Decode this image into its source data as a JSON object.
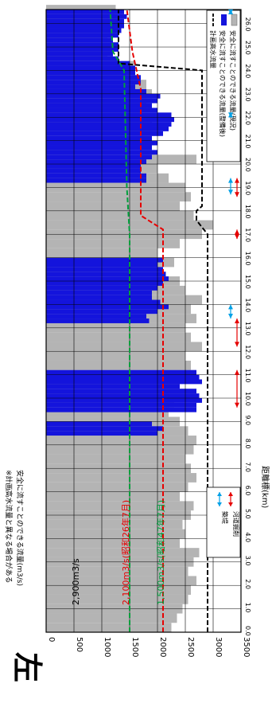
{
  "page_label": "左岸",
  "chart_data": {
    "type": "bar",
    "orientation": "rotated-90-clockwise",
    "ylabel": "安全に流すことのできる流量(m3/s)",
    "ylabel_note": "※計画高水流量と異なる場合がある",
    "xlabel": "距離標(km)",
    "ylim": [
      0,
      3500
    ],
    "yticks": [
      0,
      500,
      1000,
      1500,
      2000,
      2500,
      3000,
      3500
    ],
    "xlim": [
      0,
      26.6
    ],
    "xticks": [
      "0.0",
      "1.0",
      "2.0",
      "3.0",
      "4.0",
      "5.0",
      "6.0",
      "7.0",
      "8.0",
      "9.0",
      "10.0",
      "11.0",
      "12.0",
      "13.0",
      "14.0",
      "15.0",
      "16.0",
      "17.0",
      "18.0",
      "19.0",
      "20.0",
      "21.0",
      "22.0",
      "23.0",
      "24.0",
      "25.0",
      "26.0"
    ],
    "grid": true,
    "legend_placement": "top-right",
    "legend": {
      "current": "安全に流すことのできる流量(現況)",
      "improved": "安全に流すことのできる流量(整備後)",
      "plan": "計画高水流量"
    },
    "legend2": {
      "excavation": "河道掘削",
      "levee": "築堤"
    },
    "annotations": {
      "plan_label": "2,900m3/s",
      "red_label": "2,100m3/s(昭和26年7月)",
      "green_label": "1,500m3/s(昭和47年7月)"
    },
    "colors": {
      "current": "#b4b4b4",
      "improved": "#1414dc",
      "plan": "#000000",
      "red": "#e60000",
      "green": "#00a03c",
      "cyan": "#00a0e6"
    },
    "current_capacity": [
      [
        0,
        2250
      ],
      [
        0.4,
        2350
      ],
      [
        0.8,
        2450
      ],
      [
        1.2,
        2550
      ],
      [
        1.6,
        2600
      ],
      [
        2.0,
        2700
      ],
      [
        2.4,
        2550
      ],
      [
        2.8,
        2650
      ],
      [
        3.2,
        2750
      ],
      [
        3.6,
        2400
      ],
      [
        4.0,
        2500
      ],
      [
        4.4,
        2450
      ],
      [
        4.8,
        2600
      ],
      [
        5.2,
        2650
      ],
      [
        5.6,
        2400
      ],
      [
        6.0,
        2550
      ],
      [
        6.4,
        2700
      ],
      [
        6.8,
        2600
      ],
      [
        7.2,
        2500
      ],
      [
        7.6,
        2650
      ],
      [
        8.0,
        2700
      ],
      [
        8.4,
        2550
      ],
      [
        8.8,
        2400
      ],
      [
        9.2,
        2200
      ],
      [
        9.6,
        2300
      ],
      [
        10.0,
        2700
      ],
      [
        10.4,
        2400
      ],
      [
        10.8,
        2700
      ],
      [
        11.2,
        2600
      ],
      [
        11.6,
        2500
      ],
      [
        12.0,
        2800
      ],
      [
        12.4,
        2600
      ],
      [
        12.8,
        2500
      ],
      [
        13.2,
        2700
      ],
      [
        13.6,
        2600
      ],
      [
        14.0,
        2800
      ],
      [
        14.4,
        2500
      ],
      [
        14.8,
        2400
      ],
      [
        15.2,
        2100
      ],
      [
        15.6,
        2300
      ],
      [
        16.0,
        2000
      ],
      [
        16.4,
        2400
      ],
      [
        16.8,
        2800
      ],
      [
        17.2,
        3000
      ],
      [
        17.6,
        2650
      ],
      [
        18.0,
        2400
      ],
      [
        18.4,
        2600
      ],
      [
        18.8,
        2500
      ],
      [
        19.2,
        2200
      ],
      [
        19.6,
        2000
      ],
      [
        20.0,
        2700
      ],
      [
        20.4,
        1500
      ],
      [
        20.8,
        1400
      ],
      [
        21.2,
        2050
      ],
      [
        21.6,
        1900
      ],
      [
        22.0,
        1700
      ],
      [
        22.4,
        1800
      ],
      [
        22.8,
        1900
      ],
      [
        23.2,
        1800
      ],
      [
        23.6,
        1500
      ],
      [
        24.0,
        1600
      ],
      [
        24.4,
        1100
      ],
      [
        24.8,
        1200
      ],
      [
        25.2,
        1100
      ],
      [
        25.6,
        1250
      ],
      [
        26.0,
        1300
      ],
      [
        26.4,
        1250
      ]
    ],
    "improved_capacity": [
      [
        8.4,
        2000
      ],
      [
        8.6,
        2100
      ],
      [
        8.8,
        1900
      ],
      [
        9.4,
        2700
      ],
      [
        9.6,
        2700
      ],
      [
        9.8,
        2800
      ],
      [
        10.0,
        2750
      ],
      [
        10.2,
        2700
      ],
      [
        10.4,
        2400
      ],
      [
        10.6,
        2800
      ],
      [
        10.8,
        2750
      ],
      [
        11.0,
        2700
      ],
      [
        13.2,
        1850
      ],
      [
        13.4,
        1800
      ],
      [
        13.6,
        2000
      ],
      [
        13.8,
        2200
      ],
      [
        14.0,
        2050
      ],
      [
        14.2,
        1900
      ],
      [
        14.4,
        1900
      ],
      [
        14.6,
        2000
      ],
      [
        14.8,
        2100
      ],
      [
        15.0,
        2200
      ],
      [
        15.2,
        2150
      ],
      [
        15.4,
        2100
      ],
      [
        15.6,
        2000
      ],
      [
        15.8,
        2100
      ],
      [
        19.2,
        1800
      ],
      [
        19.4,
        1800
      ],
      [
        19.6,
        1700
      ],
      [
        19.8,
        1700
      ],
      [
        20.0,
        1800
      ],
      [
        20.2,
        1900
      ],
      [
        20.4,
        2000
      ],
      [
        20.6,
        1900
      ],
      [
        20.8,
        2000
      ],
      [
        21.0,
        1900
      ],
      [
        21.2,
        2100
      ],
      [
        21.4,
        2200
      ],
      [
        21.6,
        2250
      ],
      [
        21.8,
        2300
      ],
      [
        22.0,
        2250
      ],
      [
        22.2,
        2000
      ],
      [
        22.4,
        1900
      ],
      [
        22.6,
        2000
      ],
      [
        22.8,
        2050
      ],
      [
        23.0,
        1800
      ],
      [
        23.2,
        1600
      ],
      [
        23.4,
        1700
      ],
      [
        23.6,
        1700
      ],
      [
        23.8,
        1600
      ],
      [
        24.0,
        1600
      ],
      [
        24.2,
        1500
      ],
      [
        24.4,
        1300
      ],
      [
        24.6,
        1200
      ],
      [
        24.8,
        1300
      ],
      [
        25.0,
        1300
      ],
      [
        25.2,
        1200
      ],
      [
        25.4,
        1300
      ],
      [
        25.6,
        1350
      ],
      [
        25.8,
        1400
      ],
      [
        26.0,
        1400
      ],
      [
        26.2,
        1450
      ],
      [
        26.4,
        1400
      ]
    ],
    "plan_discharge": [
      [
        0,
        2900
      ],
      [
        17.0,
        2900
      ],
      [
        17.6,
        2700
      ],
      [
        18.0,
        2700
      ],
      [
        18.2,
        2800
      ],
      [
        24.0,
        2800
      ],
      [
        24.3,
        1300
      ],
      [
        26.6,
        1300
      ]
    ],
    "red_target": [
      [
        0,
        2100
      ],
      [
        17.2,
        2100
      ],
      [
        17.8,
        1700
      ],
      [
        23.2,
        1700
      ],
      [
        24.8,
        1550
      ],
      [
        26.6,
        1450
      ]
    ],
    "green_target": [
      [
        0,
        1500
      ],
      [
        17.0,
        1500
      ],
      [
        19.0,
        1450
      ],
      [
        24.0,
        1400
      ],
      [
        24.8,
        1200
      ],
      [
        26.6,
        1150
      ]
    ],
    "excavation_ranges": [
      [
        9.6,
        11.2
      ],
      [
        12.2,
        13.4
      ],
      [
        16.8,
        17.2
      ],
      [
        18.6,
        19.4
      ]
    ],
    "levee_ranges": [
      [
        13.4,
        14.0
      ],
      [
        18.7,
        19.4
      ],
      [
        22.0,
        22.2
      ],
      [
        26.4,
        26.6
      ]
    ]
  }
}
